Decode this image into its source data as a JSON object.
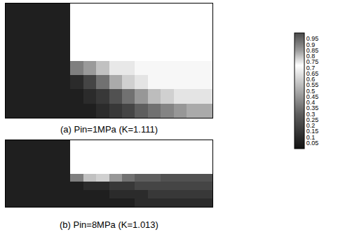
{
  "chart_data": [
    {
      "type": "heatmap",
      "title": "(a) Pin=1MPa (K=1.111)",
      "x": [
        0.5,
        1.5,
        2.5,
        3.5,
        4.5,
        5.5,
        6.5,
        7.5,
        8.5,
        9.5,
        10.5,
        11.5,
        12.5,
        13.5,
        14.5,
        15.5
      ],
      "y": [
        0.5,
        1.5,
        2.5,
        3.5,
        4.5,
        5.5,
        6.5,
        7.5
      ],
      "z": [
        [
          0.05,
          0.05,
          0.05,
          0.05,
          0.05,
          0.05,
          0.05,
          0.1,
          0.15,
          0.2,
          0.3,
          0.35,
          0.4,
          0.45,
          0.5,
          0.5
        ],
        [
          0.05,
          0.05,
          0.05,
          0.05,
          0.05,
          0.05,
          0.1,
          0.15,
          0.25,
          0.35,
          0.45,
          0.55,
          0.6,
          0.65,
          0.65,
          0.65
        ],
        [
          0.05,
          0.05,
          0.05,
          0.05,
          0.05,
          0.1,
          0.2,
          0.35,
          0.5,
          0.6,
          0.65,
          0.7,
          0.7,
          0.7,
          0.7,
          0.7
        ],
        [
          0.05,
          0.05,
          0.05,
          0.05,
          0.05,
          0.9,
          0.85,
          0.8,
          0.75,
          0.75,
          0.7,
          0.7,
          0.7,
          0.7,
          0.7,
          0.7
        ],
        [
          0.05,
          0.05,
          0.05,
          0.05,
          0.05,
          null,
          null,
          null,
          null,
          null,
          null,
          null,
          null,
          null,
          null,
          null
        ],
        [
          0.05,
          0.05,
          0.05,
          0.05,
          0.05,
          null,
          null,
          null,
          null,
          null,
          null,
          null,
          null,
          null,
          null,
          null
        ],
        [
          0.05,
          0.05,
          0.05,
          0.05,
          0.05,
          null,
          null,
          null,
          null,
          null,
          null,
          null,
          null,
          null,
          null,
          null
        ],
        [
          0.05,
          0.05,
          0.05,
          0.05,
          0.05,
          null,
          null,
          null,
          null,
          null,
          null,
          null,
          null,
          null,
          null,
          null
        ]
      ],
      "xlim": [
        0,
        16
      ],
      "ylim": [
        0,
        8
      ],
      "tick_labels": false,
      "colorbar": {
        "range": [
          0,
          1
        ],
        "ticks": [
          0.05,
          0.1,
          0.15,
          0.2,
          0.25,
          0.3,
          0.35,
          0.4,
          0.45,
          0.5,
          0.55,
          0.6,
          0.65,
          0.7,
          0.75,
          0.8,
          0.85,
          0.9,
          0.95
        ]
      }
    },
    {
      "type": "heatmap",
      "title": "(b) Pin=8MPa (K=1.013)",
      "x": [
        0.5,
        1.5,
        2.5,
        3.5,
        4.5,
        5.5,
        6.5,
        7.5,
        8.5,
        9.5,
        10.5,
        11.5,
        12.5,
        13.5,
        14.5,
        15.5
      ],
      "y": [
        0.5,
        1.5,
        2.5,
        3.5,
        4.5,
        5.5,
        6.5,
        7.5
      ],
      "z": [
        [
          0.05,
          0.05,
          0.05,
          0.05,
          0.05,
          0.05,
          0.05,
          0.05,
          0.05,
          0.05,
          0.1,
          0.1,
          0.1,
          0.1,
          0.1,
          0.1
        ],
        [
          0.05,
          0.05,
          0.05,
          0.05,
          0.05,
          0.05,
          0.05,
          0.05,
          0.1,
          0.1,
          0.1,
          0.15,
          0.15,
          0.15,
          0.15,
          0.15
        ],
        [
          0.05,
          0.05,
          0.05,
          0.05,
          0.05,
          0.05,
          0.1,
          0.1,
          0.15,
          0.15,
          0.2,
          0.2,
          0.2,
          0.2,
          0.2,
          0.2
        ],
        [
          0.05,
          0.05,
          0.05,
          0.05,
          0.05,
          0.9,
          0.8,
          0.6,
          0.45,
          0.35,
          0.3,
          0.3,
          0.25,
          0.25,
          0.25,
          0.25
        ],
        [
          0.05,
          0.05,
          0.05,
          0.05,
          0.05,
          null,
          null,
          null,
          null,
          null,
          null,
          null,
          null,
          null,
          null,
          null
        ],
        [
          0.05,
          0.05,
          0.05,
          0.05,
          0.05,
          null,
          null,
          null,
          null,
          null,
          null,
          null,
          null,
          null,
          null,
          null
        ],
        [
          0.05,
          0.05,
          0.05,
          0.05,
          0.05,
          null,
          null,
          null,
          null,
          null,
          null,
          null,
          null,
          null,
          null,
          null
        ],
        [
          0.05,
          0.05,
          0.05,
          0.05,
          0.05,
          null,
          null,
          null,
          null,
          null,
          null,
          null,
          null,
          null,
          null,
          null
        ]
      ],
      "xlim": [
        0,
        16
      ],
      "ylim": [
        0,
        8
      ],
      "tick_labels": false
    }
  ]
}
